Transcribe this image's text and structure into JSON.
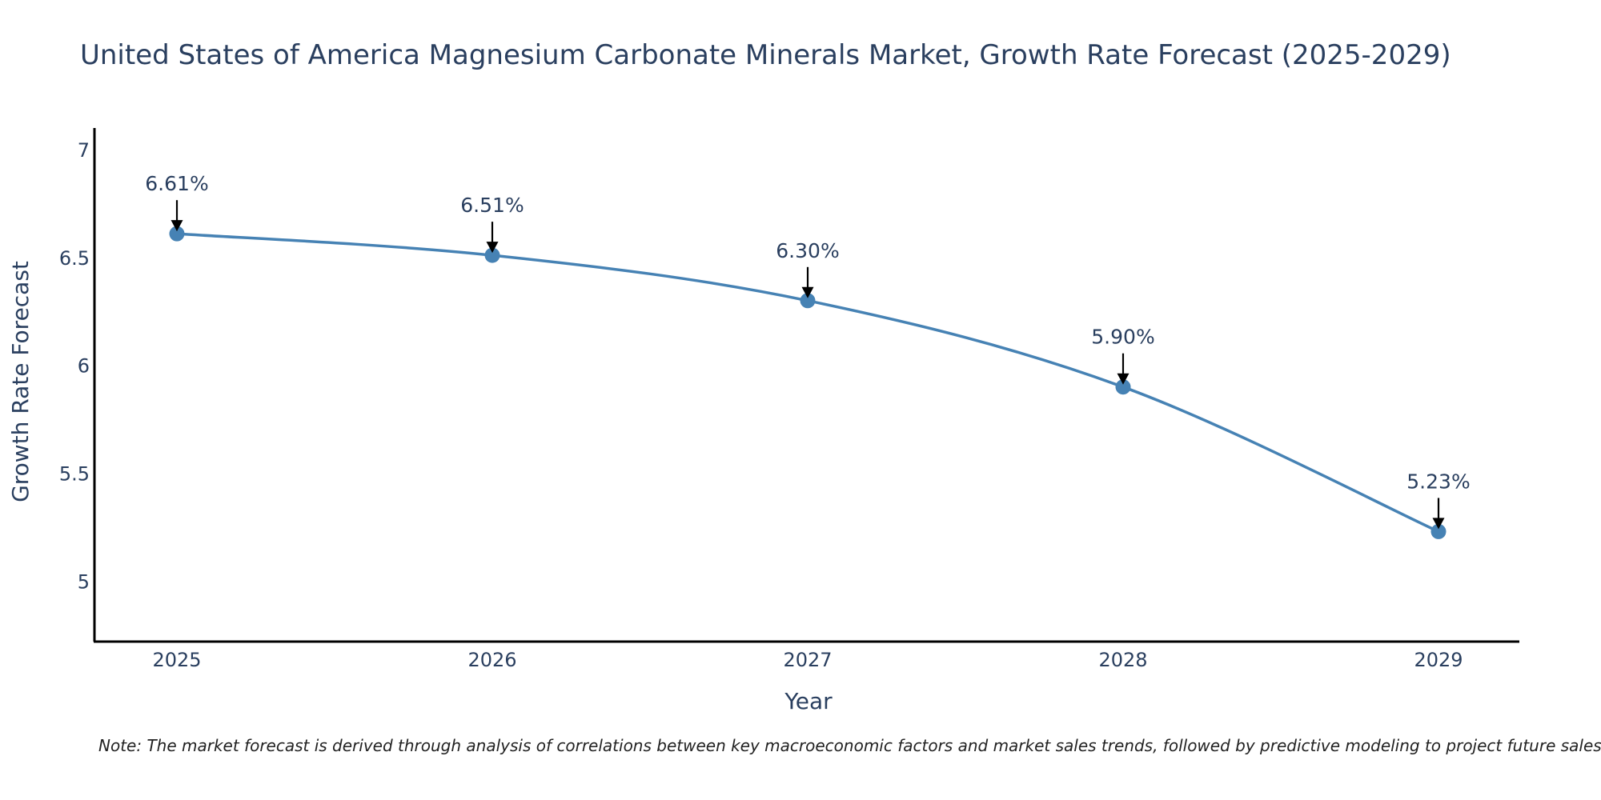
{
  "chart_data": {
    "type": "line",
    "title": "United States of America Magnesium Carbonate Minerals Market, Growth Rate Forecast (2025-2029)",
    "xlabel": "Year",
    "ylabel": "Growth Rate Forecast",
    "categories": [
      "2025",
      "2026",
      "2027",
      "2028",
      "2029"
    ],
    "values": [
      6.61,
      6.51,
      6.3,
      5.9,
      5.23
    ],
    "data_labels": [
      "6.61%",
      "6.51%",
      "6.30%",
      "5.90%",
      "5.23%"
    ],
    "y_ticks": [
      5,
      5.5,
      6,
      6.5,
      7
    ],
    "y_tick_labels": [
      "5",
      "5.5",
      "6",
      "6.5",
      "7"
    ],
    "ylim": [
      4.72,
      7.1
    ],
    "grid": false,
    "line_color": "#4682b4",
    "note": "Note: The market forecast is derived through analysis of correlations between key macroeconomic factors and market sales trends, followed by predictive modeling to project future sales."
  }
}
